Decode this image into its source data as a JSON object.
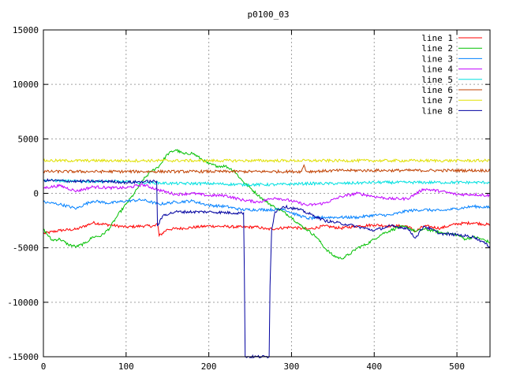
{
  "chart_data": {
    "type": "line",
    "title": "p0100_03",
    "xlabel": "",
    "ylabel": "",
    "xlim": [
      0,
      540
    ],
    "ylim": [
      -15000,
      15000
    ],
    "xticks": [
      0,
      100,
      200,
      300,
      400,
      500
    ],
    "yticks": [
      -15000,
      -10000,
      -5000,
      0,
      5000,
      10000,
      15000
    ],
    "grid": true,
    "legend_position": "top-right",
    "series": [
      {
        "name": "line 1",
        "color": "#ff0000",
        "points": [
          [
            0,
            -3700
          ],
          [
            20,
            -3400
          ],
          [
            40,
            -3300
          ],
          [
            60,
            -2700
          ],
          [
            80,
            -2900
          ],
          [
            100,
            -3100
          ],
          [
            120,
            -3000
          ],
          [
            135,
            -3000
          ],
          [
            138,
            -2700
          ],
          [
            140,
            -3900
          ],
          [
            150,
            -3300
          ],
          [
            170,
            -3200
          ],
          [
            200,
            -3000
          ],
          [
            240,
            -3100
          ],
          [
            260,
            -3100
          ],
          [
            270,
            -3300
          ],
          [
            300,
            -3100
          ],
          [
            320,
            -3300
          ],
          [
            340,
            -3000
          ],
          [
            360,
            -3200
          ],
          [
            380,
            -3000
          ],
          [
            400,
            -2900
          ],
          [
            420,
            -3000
          ],
          [
            440,
            -3000
          ],
          [
            450,
            -3500
          ],
          [
            460,
            -3000
          ],
          [
            480,
            -3200
          ],
          [
            500,
            -2800
          ],
          [
            520,
            -2700
          ],
          [
            540,
            -2900
          ]
        ]
      },
      {
        "name": "line 2",
        "color": "#00c000",
        "points": [
          [
            0,
            -3300
          ],
          [
            10,
            -4300
          ],
          [
            20,
            -4200
          ],
          [
            30,
            -4700
          ],
          [
            40,
            -4900
          ],
          [
            50,
            -4600
          ],
          [
            60,
            -4000
          ],
          [
            70,
            -3900
          ],
          [
            80,
            -3200
          ],
          [
            90,
            -2000
          ],
          [
            100,
            -1000
          ],
          [
            110,
            0
          ],
          [
            120,
            1200
          ],
          [
            130,
            2000
          ],
          [
            140,
            2500
          ],
          [
            150,
            3600
          ],
          [
            160,
            4000
          ],
          [
            170,
            3600
          ],
          [
            180,
            3700
          ],
          [
            190,
            3200
          ],
          [
            200,
            2700
          ],
          [
            210,
            2500
          ],
          [
            220,
            2500
          ],
          [
            230,
            2100
          ],
          [
            240,
            1200
          ],
          [
            250,
            500
          ],
          [
            260,
            -200
          ],
          [
            270,
            -800
          ],
          [
            280,
            -1300
          ],
          [
            290,
            -1700
          ],
          [
            300,
            -2200
          ],
          [
            310,
            -2900
          ],
          [
            320,
            -3400
          ],
          [
            330,
            -4000
          ],
          [
            340,
            -5000
          ],
          [
            350,
            -5700
          ],
          [
            360,
            -6000
          ],
          [
            370,
            -5600
          ],
          [
            380,
            -5000
          ],
          [
            390,
            -4700
          ],
          [
            400,
            -4200
          ],
          [
            410,
            -3700
          ],
          [
            420,
            -3400
          ],
          [
            430,
            -3100
          ],
          [
            440,
            -3100
          ],
          [
            450,
            -3500
          ],
          [
            460,
            -3300
          ],
          [
            470,
            -3400
          ],
          [
            480,
            -3600
          ],
          [
            490,
            -3700
          ],
          [
            500,
            -3800
          ],
          [
            510,
            -4200
          ],
          [
            520,
            -4000
          ],
          [
            530,
            -4200
          ],
          [
            540,
            -4500
          ]
        ]
      },
      {
        "name": "line 3",
        "color": "#0080ff",
        "points": [
          [
            0,
            -800
          ],
          [
            20,
            -1000
          ],
          [
            40,
            -1400
          ],
          [
            50,
            -1000
          ],
          [
            60,
            -700
          ],
          [
            80,
            -900
          ],
          [
            100,
            -700
          ],
          [
            120,
            -600
          ],
          [
            140,
            -1000
          ],
          [
            160,
            -800
          ],
          [
            180,
            -700
          ],
          [
            200,
            -1100
          ],
          [
            220,
            -1200
          ],
          [
            240,
            -1500
          ],
          [
            260,
            -1500
          ],
          [
            280,
            -1500
          ],
          [
            290,
            -1400
          ],
          [
            300,
            -1800
          ],
          [
            320,
            -2300
          ],
          [
            340,
            -2200
          ],
          [
            360,
            -2200
          ],
          [
            380,
            -2200
          ],
          [
            400,
            -2000
          ],
          [
            420,
            -2000
          ],
          [
            440,
            -1600
          ],
          [
            460,
            -1500
          ],
          [
            480,
            -1600
          ],
          [
            500,
            -1400
          ],
          [
            520,
            -1200
          ],
          [
            540,
            -1300
          ]
        ]
      },
      {
        "name": "line 4",
        "color": "#c000ff",
        "points": [
          [
            0,
            500
          ],
          [
            20,
            700
          ],
          [
            40,
            200
          ],
          [
            60,
            600
          ],
          [
            80,
            500
          ],
          [
            100,
            500
          ],
          [
            120,
            800
          ],
          [
            140,
            300
          ],
          [
            160,
            -100
          ],
          [
            180,
            0
          ],
          [
            200,
            -200
          ],
          [
            220,
            -200
          ],
          [
            240,
            -600
          ],
          [
            260,
            -800
          ],
          [
            280,
            -400
          ],
          [
            300,
            -700
          ],
          [
            320,
            -1100
          ],
          [
            340,
            -900
          ],
          [
            360,
            -300
          ],
          [
            380,
            0
          ],
          [
            400,
            -300
          ],
          [
            420,
            -500
          ],
          [
            440,
            -500
          ],
          [
            460,
            400
          ],
          [
            480,
            200
          ],
          [
            500,
            -100
          ],
          [
            520,
            -100
          ],
          [
            540,
            -200
          ]
        ]
      },
      {
        "name": "line 5",
        "color": "#00e0e0",
        "points": [
          [
            0,
            1200
          ],
          [
            40,
            1100
          ],
          [
            80,
            1100
          ],
          [
            120,
            1000
          ],
          [
            160,
            900
          ],
          [
            200,
            900
          ],
          [
            240,
            800
          ],
          [
            280,
            800
          ],
          [
            320,
            900
          ],
          [
            360,
            900
          ],
          [
            400,
            1000
          ],
          [
            440,
            1000
          ],
          [
            480,
            1000
          ],
          [
            520,
            1000
          ],
          [
            540,
            1000
          ]
        ]
      },
      {
        "name": "line 6",
        "color": "#c04000",
        "points": [
          [
            0,
            2000
          ],
          [
            60,
            2000
          ],
          [
            120,
            2000
          ],
          [
            180,
            2000
          ],
          [
            240,
            2000
          ],
          [
            300,
            2000
          ],
          [
            312,
            2000
          ],
          [
            315,
            2600
          ],
          [
            318,
            2000
          ],
          [
            360,
            2100
          ],
          [
            420,
            2100
          ],
          [
            480,
            2100
          ],
          [
            540,
            2100
          ]
        ]
      },
      {
        "name": "line 7",
        "color": "#e0e000",
        "points": [
          [
            0,
            3000
          ],
          [
            60,
            3000
          ],
          [
            120,
            3000
          ],
          [
            180,
            3000
          ],
          [
            240,
            3000
          ],
          [
            300,
            3000
          ],
          [
            360,
            3000
          ],
          [
            420,
            3000
          ],
          [
            480,
            3000
          ],
          [
            540,
            3000
          ]
        ]
      },
      {
        "name": "line 8",
        "color": "#0000a0",
        "points": [
          [
            0,
            1200
          ],
          [
            40,
            1100
          ],
          [
            80,
            1100
          ],
          [
            100,
            1000
          ],
          [
            130,
            1100
          ],
          [
            137,
            1100
          ],
          [
            138,
            -3000
          ],
          [
            145,
            -2000
          ],
          [
            160,
            -1700
          ],
          [
            200,
            -1700
          ],
          [
            230,
            -1800
          ],
          [
            240,
            -1800
          ],
          [
            242,
            -1800
          ],
          [
            243,
            -7400
          ],
          [
            244,
            -15000
          ],
          [
            273,
            -15000
          ],
          [
            274,
            -8500
          ],
          [
            276,
            -3300
          ],
          [
            280,
            -1700
          ],
          [
            290,
            -1200
          ],
          [
            310,
            -1500
          ],
          [
            340,
            -2500
          ],
          [
            370,
            -2900
          ],
          [
            400,
            -3400
          ],
          [
            420,
            -3000
          ],
          [
            440,
            -3200
          ],
          [
            450,
            -4100
          ],
          [
            460,
            -3000
          ],
          [
            480,
            -3700
          ],
          [
            500,
            -3800
          ],
          [
            520,
            -4000
          ],
          [
            530,
            -4400
          ],
          [
            540,
            -4900
          ]
        ]
      }
    ]
  }
}
